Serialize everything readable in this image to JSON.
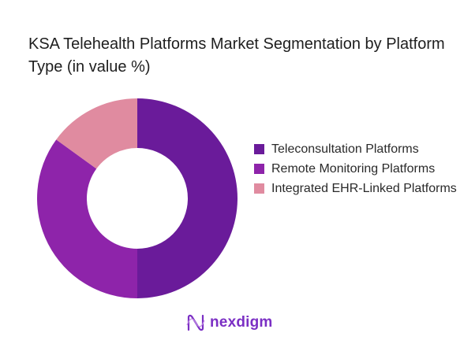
{
  "chart_data": {
    "type": "pie",
    "donut": true,
    "title": "KSA Telehealth Platforms Market Segmentation by Platform Type (in value %)",
    "categories": [
      "Teleconsultation Platforms",
      "Remote Monitoring Platforms",
      "Integrated EHR-Linked Platforms"
    ],
    "values": [
      50,
      35,
      15
    ],
    "colors": [
      "#6a1b9a",
      "#8e24aa",
      "#e08ba0"
    ],
    "legend_position": "right"
  },
  "logo": {
    "text": "nexdigm"
  }
}
